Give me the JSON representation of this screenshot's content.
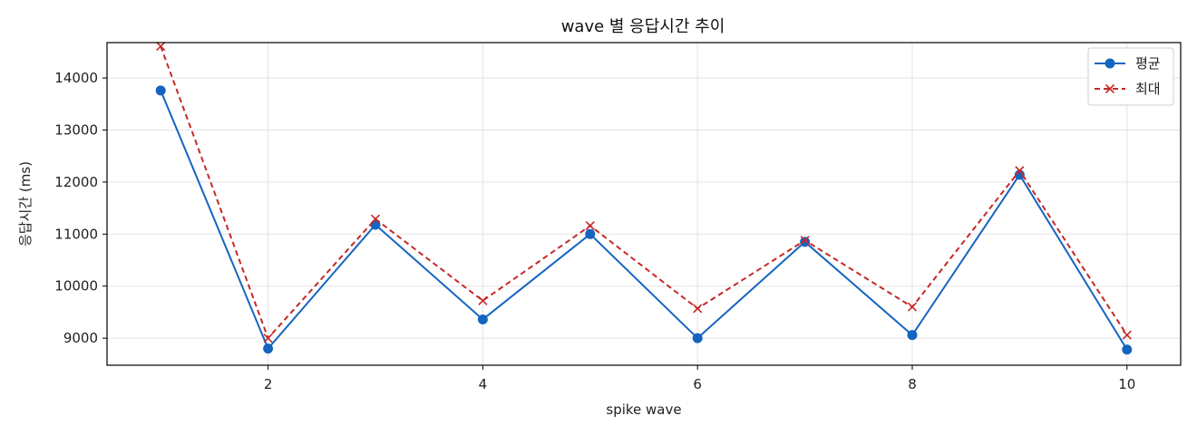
{
  "chart_data": {
    "type": "line",
    "title": "wave 별 응답시간 추이",
    "xlabel": "spike wave",
    "ylabel": "응답시간 (ms)",
    "x": [
      1,
      2,
      3,
      4,
      5,
      6,
      7,
      8,
      9,
      10
    ],
    "xlim": [
      0.5,
      10.5
    ],
    "ylim": [
      8480,
      14680
    ],
    "xticks": [
      2,
      4,
      6,
      8,
      10
    ],
    "yticks": [
      9000,
      10000,
      11000,
      12000,
      13000,
      14000
    ],
    "grid": true,
    "legend_position": "top-right",
    "series": [
      {
        "name": "평균",
        "values": [
          13760,
          8800,
          11180,
          9360,
          11000,
          9000,
          10850,
          9060,
          12140,
          8780
        ],
        "color": "#1565c0",
        "line_style": "solid",
        "marker": "circle"
      },
      {
        "name": "최대",
        "values": [
          14610,
          9000,
          11290,
          9720,
          11160,
          9570,
          10880,
          9600,
          12220,
          9060
        ],
        "color": "#c62828",
        "line_style": "dashed",
        "marker": "x"
      }
    ]
  }
}
